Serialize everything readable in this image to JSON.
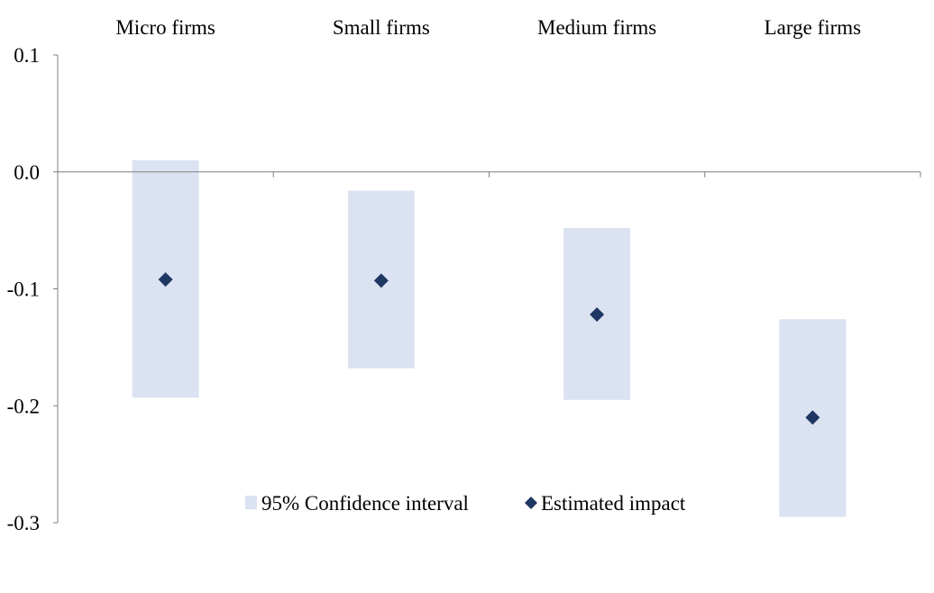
{
  "chart_data": {
    "type": "scatter",
    "title": "",
    "xlabel": "",
    "ylabel": "",
    "categories": [
      "Micro firms",
      "Small firms",
      "Medium firms",
      "Large firms"
    ],
    "ylim": [
      -0.3,
      0.1
    ],
    "yticks": [
      0.1,
      0.0,
      -0.1,
      -0.2,
      -0.3
    ],
    "ytick_labels": [
      "0.1",
      "0.0",
      "-0.1",
      "-0.2",
      "-0.3"
    ],
    "category_label_position": "top",
    "series": [
      {
        "name": "95% Confidence interval",
        "kind": "range-bar",
        "color": "#dbe2f1",
        "low": [
          -0.193,
          -0.168,
          -0.195,
          -0.295
        ],
        "high": [
          0.01,
          -0.016,
          -0.048,
          -0.126
        ]
      },
      {
        "name": "Estimated impact",
        "kind": "point",
        "marker": "diamond",
        "color": "#1f3763",
        "values": [
          -0.092,
          -0.093,
          -0.122,
          -0.21
        ]
      }
    ],
    "grid": false,
    "legend": {
      "position": "bottom-center"
    }
  }
}
